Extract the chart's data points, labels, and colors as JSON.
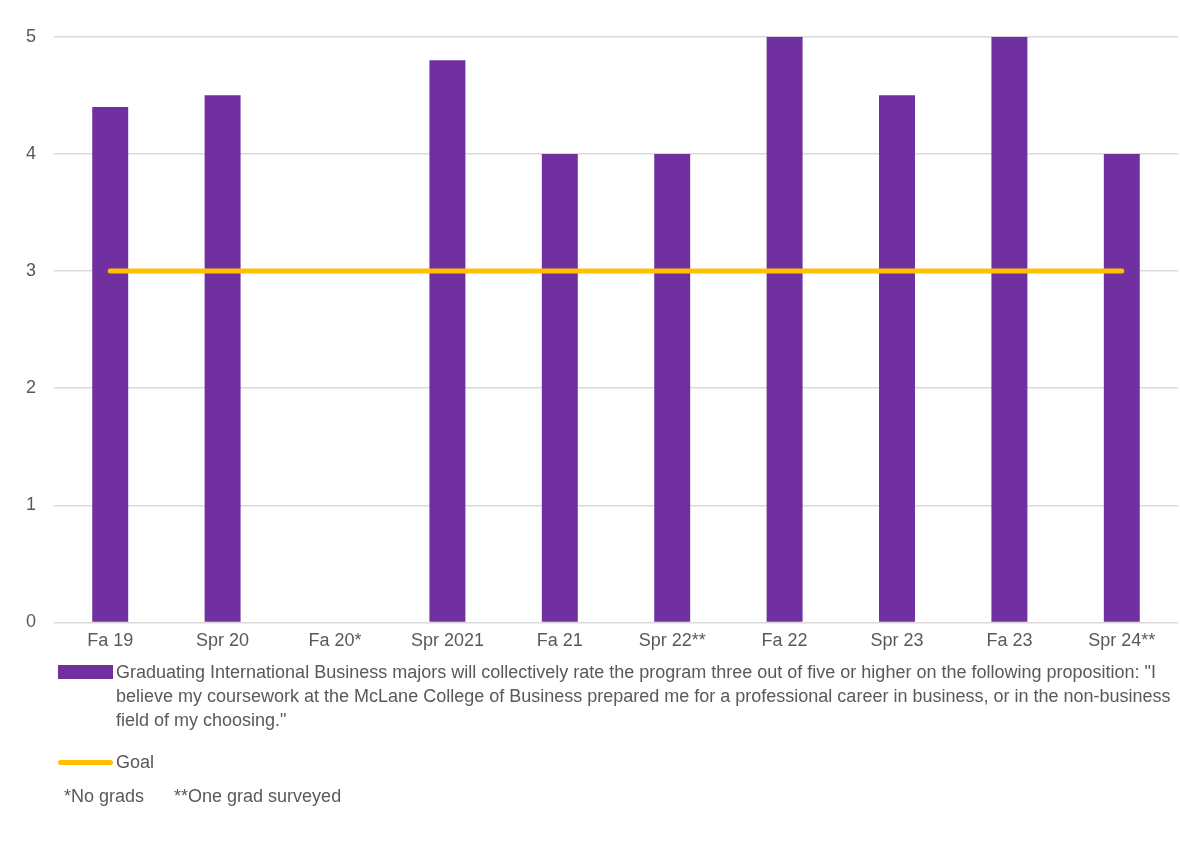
{
  "chart_data": {
    "type": "bar",
    "categories": [
      "Fa 19",
      "Spr 20",
      "Fa 20*",
      "Spr 2021",
      "Fa 21",
      "Spr 22**",
      "Fa 22",
      "Spr 23",
      "Fa 23",
      "Spr 24**"
    ],
    "series": [
      {
        "name": "Graduating International Business majors will collectively rate the program three out of five or higher on the following proposition: \"I believe my coursework at the McLane College of Business prepared me for a professional career in business, or in the non-business field of my choosing.\"",
        "color": "#7030a0",
        "values": [
          4.4,
          4.5,
          null,
          4.8,
          4.0,
          4.0,
          5.0,
          4.5,
          5.0,
          4.0
        ]
      },
      {
        "name": "Goal",
        "type": "line",
        "color": "#ffc000",
        "values": [
          3,
          3,
          3,
          3,
          3,
          3,
          3,
          3,
          3,
          3
        ]
      }
    ],
    "ylim": [
      0,
      5
    ],
    "yticks": [
      0,
      1,
      2,
      3,
      4,
      5
    ],
    "grid": "y",
    "legend": "bottom",
    "annotations": [
      "*No grads",
      "**One grad surveyed"
    ]
  }
}
